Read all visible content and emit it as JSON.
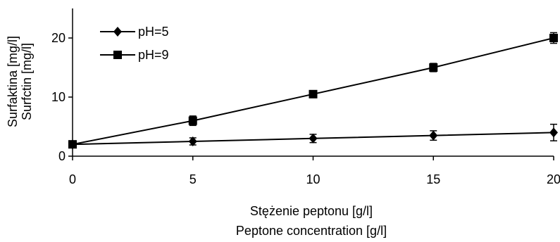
{
  "chart_data": {
    "type": "line",
    "title": "",
    "xlabel": [
      "Stężenie peptonu [g/l]",
      "Peptone concentration [g/l]"
    ],
    "ylabel": [
      "Surfaktina [mg/l]",
      "Surfctin [mg/l]"
    ],
    "xlim": [
      0,
      20
    ],
    "ylim": [
      0,
      25
    ],
    "x_ticks": [
      "0",
      "5",
      "10",
      "15",
      "20"
    ],
    "y_ticks": [
      "0",
      "10",
      "20"
    ],
    "grid": false,
    "legend_position": "top-left",
    "series": [
      {
        "name": "pH=5",
        "marker": "diamond",
        "x": [
          0,
          5,
          10,
          15,
          20
        ],
        "y": [
          2,
          2.5,
          3,
          3.5,
          4
        ],
        "error": [
          0.6,
          0.6,
          0.7,
          0.8,
          1.4
        ]
      },
      {
        "name": "pH=9",
        "marker": "square",
        "x": [
          0,
          5,
          10,
          15,
          20
        ],
        "y": [
          2,
          6,
          10.5,
          15,
          20
        ],
        "error": [
          0.4,
          0.8,
          0.6,
          0.7,
          0.9
        ]
      }
    ]
  }
}
